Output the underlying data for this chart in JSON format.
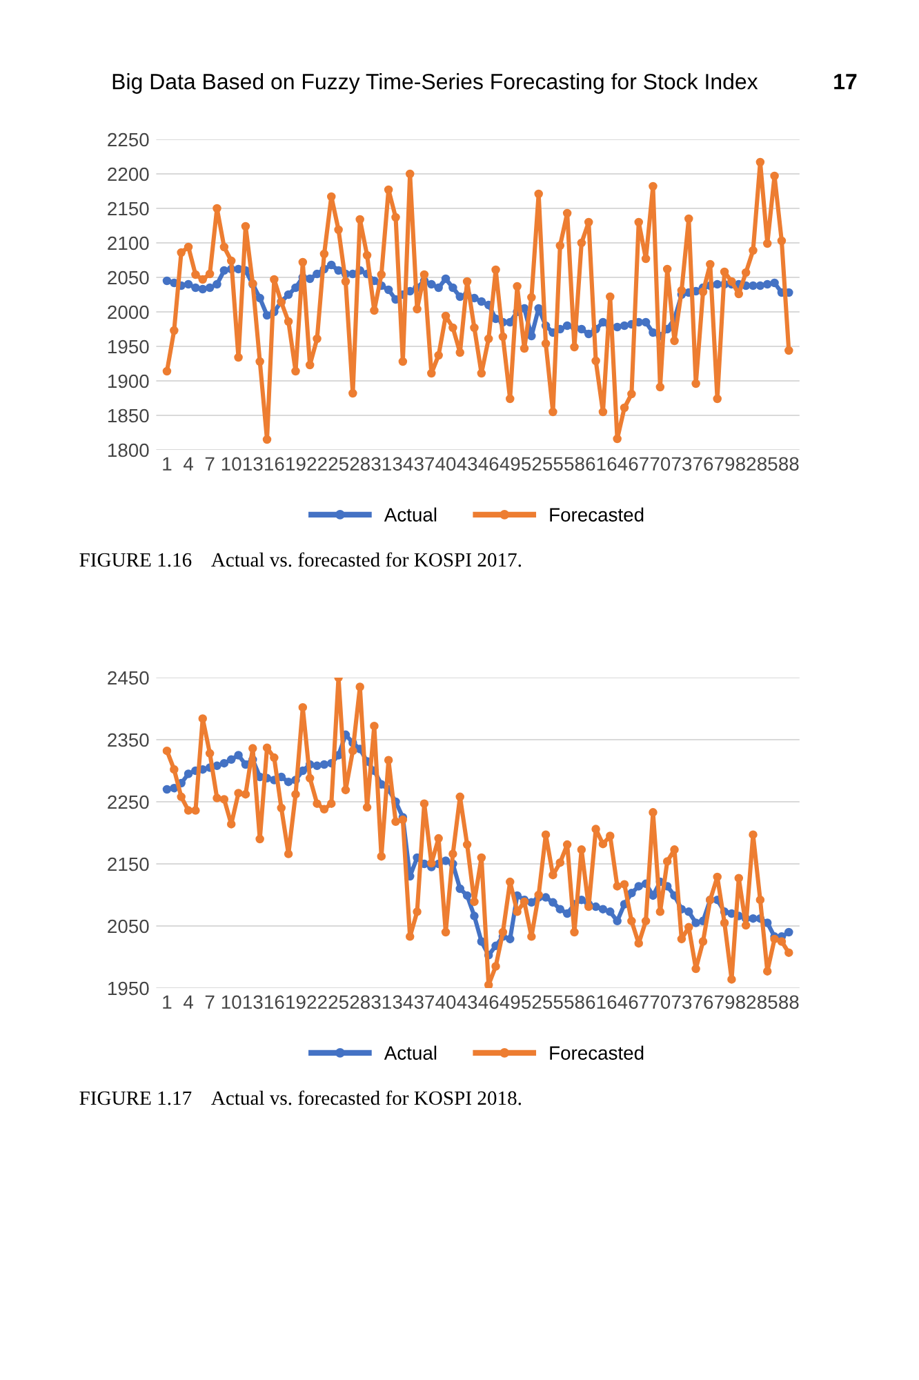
{
  "chart_data": [
    {
      "type": "line",
      "categories": [
        "1",
        null,
        null,
        "4",
        null,
        null,
        "7",
        null,
        null,
        "10",
        null,
        null,
        "13",
        null,
        null,
        "16",
        null,
        null,
        "19",
        null,
        null,
        "22",
        null,
        null,
        "25",
        null,
        null,
        "28",
        null,
        null,
        "31",
        null,
        null,
        "34",
        null,
        null,
        "37",
        null,
        null,
        "40",
        null,
        null,
        "43",
        null,
        null,
        "46",
        null,
        null,
        "49",
        null,
        null,
        "52",
        null,
        null,
        "55",
        null,
        null,
        "58",
        null,
        null,
        "61",
        null,
        null,
        "64",
        null,
        null,
        "67",
        null,
        null,
        "70",
        null,
        null,
        "73",
        null,
        null,
        "76",
        null,
        null,
        "79",
        null,
        null,
        "82",
        null,
        null,
        "85",
        null,
        null,
        "88"
      ],
      "series": [
        {
          "name": "Actual",
          "color": "#4472c4",
          "values": [
            2045,
            2042,
            2038,
            2040,
            2035,
            2033,
            2035,
            2040,
            2060,
            2062,
            2062,
            2060,
            2040,
            2020,
            1995,
            2000,
            2015,
            2025,
            2035,
            2050,
            2048,
            2055,
            2062,
            2068,
            2060,
            2055,
            2055,
            2060,
            2055,
            2045,
            2038,
            2032,
            2018,
            2025,
            2030,
            2035,
            2045,
            2040,
            2035,
            2048,
            2035,
            2022,
            2025,
            2020,
            2015,
            2010,
            1990,
            1985,
            1985,
            2000,
            2005,
            1965,
            2005,
            1980,
            1970,
            1975,
            1980,
            1978,
            1975,
            1968,
            1975,
            1985,
            1978,
            1978,
            1980,
            1982,
            1985,
            1985,
            1970,
            1965,
            1975,
            1990,
            2025,
            2028,
            2030,
            2035,
            2038,
            2040,
            2040,
            2040,
            2040,
            2038,
            2038,
            2038,
            2040,
            2042,
            2028,
            2028
          ]
        },
        {
          "name": "Forecasted",
          "color": "#ed7d31",
          "values": [
            1914,
            1973,
            2086,
            2094,
            2054,
            2047,
            2055,
            2150,
            2094,
            2074,
            1934,
            2124,
            2041,
            1928,
            1815,
            2047,
            2014,
            1986,
            1914,
            2072,
            1923,
            1961,
            2084,
            2167,
            2119,
            2044,
            1882,
            2134,
            2082,
            2002,
            2054,
            2177,
            2137,
            1928,
            2200,
            2004,
            2054,
            1911,
            1937,
            1994,
            1977,
            1941,
            2044,
            1977,
            1911,
            1961,
            2061,
            1964,
            1874,
            2037,
            1947,
            2021,
            2171,
            1954,
            1855,
            2096,
            2143,
            1949,
            2100,
            2130,
            1929,
            1855,
            2022,
            1816,
            1861,
            1881,
            2130,
            2077,
            2182,
            1891,
            2062,
            1958,
            2031,
            2135,
            1896,
            2029,
            2069,
            1874,
            2058,
            2044,
            2026,
            2057,
            2089,
            2217,
            2099,
            2197,
            2103,
            1944
          ]
        }
      ],
      "ylim": [
        1800,
        2250
      ],
      "yticks": [
        1800,
        1850,
        1900,
        1950,
        2000,
        2050,
        2100,
        2150,
        2200,
        2250
      ],
      "grid": "y",
      "legend": "bottom",
      "marker": "circle",
      "line_style": "solid",
      "annotations": [
        "Big Data Based on Fuzzy Time-Series Forecasting for Stock Index",
        "17",
        "FIGURE 1.16    Actual vs. forecasted for KOSPI 2017."
      ]
    },
    {
      "type": "line",
      "categories": [
        "1",
        null,
        null,
        "4",
        null,
        null,
        "7",
        null,
        null,
        "10",
        null,
        null,
        "13",
        null,
        null,
        "16",
        null,
        null,
        "19",
        null,
        null,
        "22",
        null,
        null,
        "25",
        null,
        null,
        "28",
        null,
        null,
        "31",
        null,
        null,
        "34",
        null,
        null,
        "37",
        null,
        null,
        "40",
        null,
        null,
        "43",
        null,
        null,
        "46",
        null,
        null,
        "49",
        null,
        null,
        "52",
        null,
        null,
        "55",
        null,
        null,
        "58",
        null,
        null,
        "61",
        null,
        null,
        "64",
        null,
        null,
        "67",
        null,
        null,
        "70",
        null,
        null,
        "73",
        null,
        null,
        "76",
        null,
        null,
        "79",
        null,
        null,
        "82",
        null,
        null,
        "85",
        null,
        null,
        "88"
      ],
      "series": [
        {
          "name": "Actual",
          "color": "#4472c4",
          "values": [
            2270,
            2272,
            2280,
            2295,
            2300,
            2302,
            2305,
            2308,
            2312,
            2318,
            2325,
            2310,
            2318,
            2290,
            2288,
            2285,
            2290,
            2282,
            2285,
            2300,
            2310,
            2308,
            2310,
            2312,
            2325,
            2358,
            2345,
            2335,
            2315,
            2300,
            2278,
            2270,
            2250,
            2225,
            2130,
            2160,
            2150,
            2145,
            2150,
            2155,
            2150,
            2110,
            2099,
            2066,
            2025,
            2003,
            2018,
            2033,
            2029,
            2099,
            2092,
            2088,
            2096,
            2096,
            2088,
            2077,
            2070,
            2085,
            2092,
            2085,
            2081,
            2077,
            2073,
            2058,
            2085,
            2103,
            2114,
            2118,
            2099,
            2121,
            2114,
            2099,
            2077,
            2073,
            2055,
            2058,
            2092,
            2092,
            2073,
            2070,
            2066,
            2062,
            2062,
            2062,
            2055,
            2033,
            2033,
            2040
          ]
        },
        {
          "name": "Forecasted",
          "color": "#ed7d31",
          "values": [
            2332,
            2302,
            2258,
            2236,
            2236,
            2384,
            2328,
            2256,
            2254,
            2214,
            2264,
            2262,
            2336,
            2190,
            2337,
            2321,
            2240,
            2166,
            2262,
            2402,
            2288,
            2247,
            2238,
            2247,
            2450,
            2269,
            2332,
            2435,
            2241,
            2372,
            2162,
            2317,
            2218,
            2221,
            2033,
            2073,
            2247,
            2151,
            2191,
            2040,
            2166,
            2258,
            2181,
            2089,
            2160,
            1955,
            1985,
            2040,
            2121,
            2073,
            2089,
            2033,
            2100,
            2197,
            2132,
            2152,
            2181,
            2040,
            2173,
            2081,
            2206,
            2182,
            2195,
            2114,
            2117,
            2058,
            2022,
            2058,
            2233,
            2073,
            2154,
            2173,
            2029,
            2048,
            1981,
            2025,
            2092,
            2129,
            2055,
            1964,
            2127,
            2051,
            2197,
            2092,
            1977,
            2029,
            2025,
            2007
          ]
        }
      ],
      "ylim": [
        1950,
        2450
      ],
      "yticks": [
        1950,
        2050,
        2150,
        2250,
        2350,
        2450
      ],
      "grid": "y",
      "legend": "bottom",
      "marker": "circle",
      "line_style": "solid",
      "annotations": [
        "FIGURE 1.17    Actual vs. forecasted for KOSPI 2018."
      ]
    }
  ]
}
